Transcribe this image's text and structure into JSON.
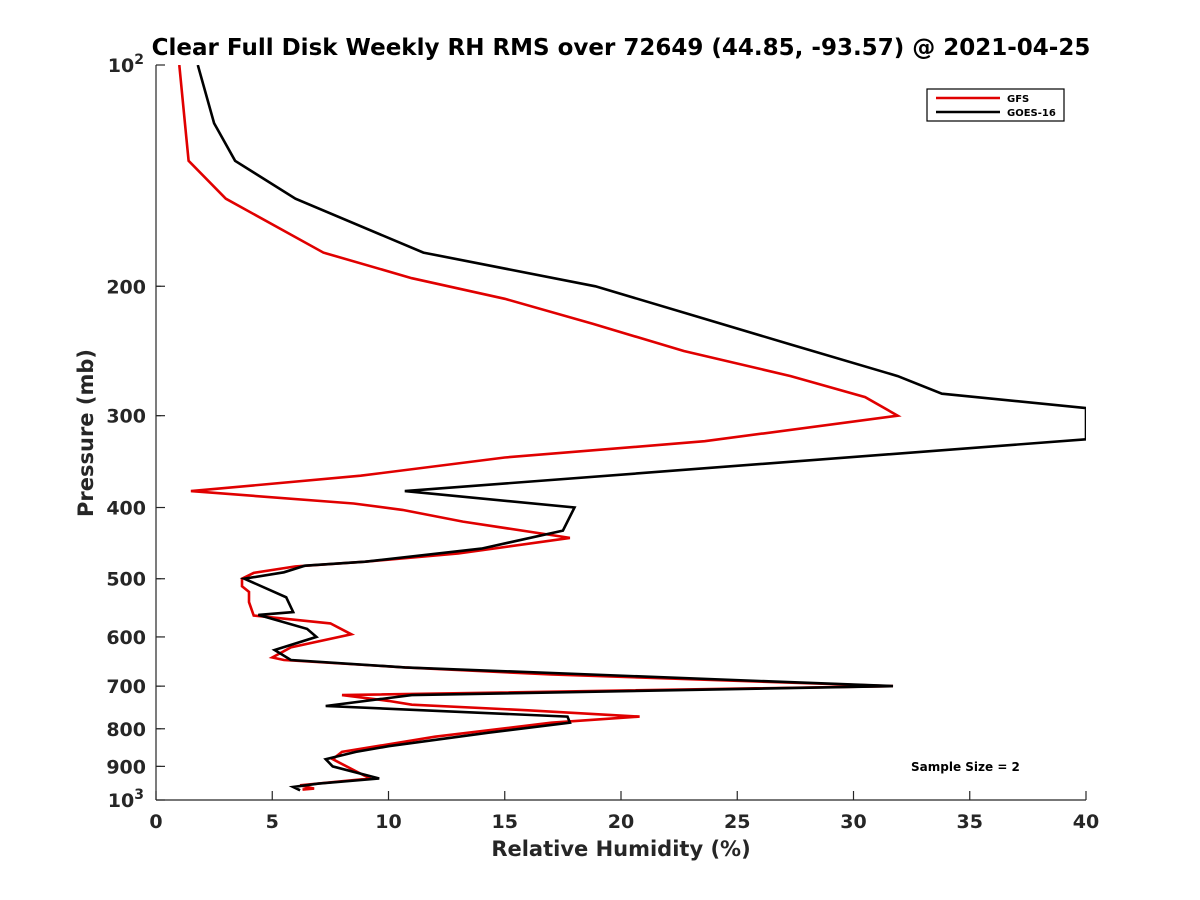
{
  "chart_data": {
    "type": "line",
    "title": "Clear Full Disk Weekly RH RMS over 72649 (44.85, -93.57) @ 2021-04-25",
    "xlabel": "Relative Humidity (%)",
    "ylabel": "Pressure (mb)",
    "xlim": [
      0,
      40
    ],
    "ylim": [
      100,
      1000
    ],
    "y_scale": "log",
    "y_reversed": true,
    "grid": false,
    "legend_position": "top-right",
    "x_ticks": [
      "0",
      "5",
      "10",
      "15",
      "20",
      "25",
      "30",
      "35",
      "40"
    ],
    "y_ticks": [
      {
        "value": 100,
        "label": "10",
        "exponent": "2"
      },
      {
        "value": 200,
        "label": "200",
        "exponent": ""
      },
      {
        "value": 300,
        "label": "300",
        "exponent": ""
      },
      {
        "value": 400,
        "label": "400",
        "exponent": ""
      },
      {
        "value": 500,
        "label": "500",
        "exponent": ""
      },
      {
        "value": 600,
        "label": "600",
        "exponent": ""
      },
      {
        "value": 700,
        "label": "700",
        "exponent": ""
      },
      {
        "value": 800,
        "label": "800",
        "exponent": ""
      },
      {
        "value": 900,
        "label": "900",
        "exponent": ""
      },
      {
        "value": 1000,
        "label": "10",
        "exponent": "3"
      }
    ],
    "annotation": "Sample Size = 2",
    "series": [
      {
        "name": "GFS",
        "color": "#e00000",
        "points": [
          [
            1.0,
            100
          ],
          [
            1.3,
            125
          ],
          [
            1.4,
            135
          ],
          [
            3.0,
            152
          ],
          [
            7.2,
            180
          ],
          [
            11.0,
            195
          ],
          [
            15.0,
            208
          ],
          [
            18.8,
            225
          ],
          [
            22.7,
            245
          ],
          [
            27.3,
            265
          ],
          [
            30.5,
            283
          ],
          [
            31.9,
            300
          ],
          [
            23.6,
            325
          ],
          [
            15.0,
            342
          ],
          [
            8.8,
            362
          ],
          [
            1.5,
            380
          ],
          [
            8.5,
            395
          ],
          [
            10.6,
            403
          ],
          [
            13.2,
            418
          ],
          [
            17.8,
            440
          ],
          [
            13.0,
            462
          ],
          [
            9.0,
            474
          ],
          [
            6.0,
            481
          ],
          [
            4.2,
            491
          ],
          [
            3.7,
            500
          ],
          [
            3.7,
            512
          ],
          [
            4.0,
            521
          ],
          [
            4.0,
            538
          ],
          [
            4.2,
            561
          ],
          [
            7.5,
            575
          ],
          [
            8.4,
            595
          ],
          [
            5.8,
            620
          ],
          [
            5.0,
            640
          ],
          [
            5.5,
            645
          ],
          [
            10.7,
            660
          ],
          [
            17.0,
            675
          ],
          [
            31.7,
            700
          ],
          [
            8.0,
            720
          ],
          [
            10.0,
            733
          ],
          [
            11.0,
            742
          ],
          [
            16.0,
            755
          ],
          [
            20.8,
            770
          ],
          [
            17.0,
            785
          ],
          [
            12.0,
            820
          ],
          [
            8.0,
            860
          ],
          [
            7.6,
            880
          ],
          [
            9.2,
            935
          ],
          [
            6.2,
            955
          ],
          [
            6.8,
            965
          ],
          [
            6.3,
            968
          ]
        ]
      },
      {
        "name": "GOES-16",
        "color": "#000000",
        "points": [
          [
            1.8,
            100
          ],
          [
            2.5,
            120
          ],
          [
            3.4,
            135
          ],
          [
            6.0,
            152
          ],
          [
            11.5,
            180
          ],
          [
            18.9,
            200
          ],
          [
            23.3,
            220
          ],
          [
            27.3,
            240
          ],
          [
            31.9,
            265
          ],
          [
            33.8,
            280
          ],
          [
            40.0,
            293
          ],
          [
            40.0,
            323
          ],
          [
            10.7,
            380
          ],
          [
            18.0,
            400
          ],
          [
            17.5,
            430
          ],
          [
            14.0,
            455
          ],
          [
            9.0,
            474
          ],
          [
            6.4,
            480
          ],
          [
            5.5,
            490
          ],
          [
            3.8,
            500
          ],
          [
            5.6,
            530
          ],
          [
            5.9,
            555
          ],
          [
            4.4,
            560
          ],
          [
            6.5,
            585
          ],
          [
            6.9,
            600
          ],
          [
            5.1,
            625
          ],
          [
            5.8,
            645
          ],
          [
            10.7,
            660
          ],
          [
            31.7,
            700
          ],
          [
            11.0,
            720
          ],
          [
            7.3,
            745
          ],
          [
            17.7,
            770
          ],
          [
            17.8,
            785
          ],
          [
            14.3,
            810
          ],
          [
            10.0,
            845
          ],
          [
            8.6,
            860
          ],
          [
            7.3,
            880
          ],
          [
            7.6,
            900
          ],
          [
            9.6,
            935
          ],
          [
            7.0,
            950
          ],
          [
            5.9,
            960
          ],
          [
            6.2,
            970
          ]
        ]
      }
    ]
  }
}
